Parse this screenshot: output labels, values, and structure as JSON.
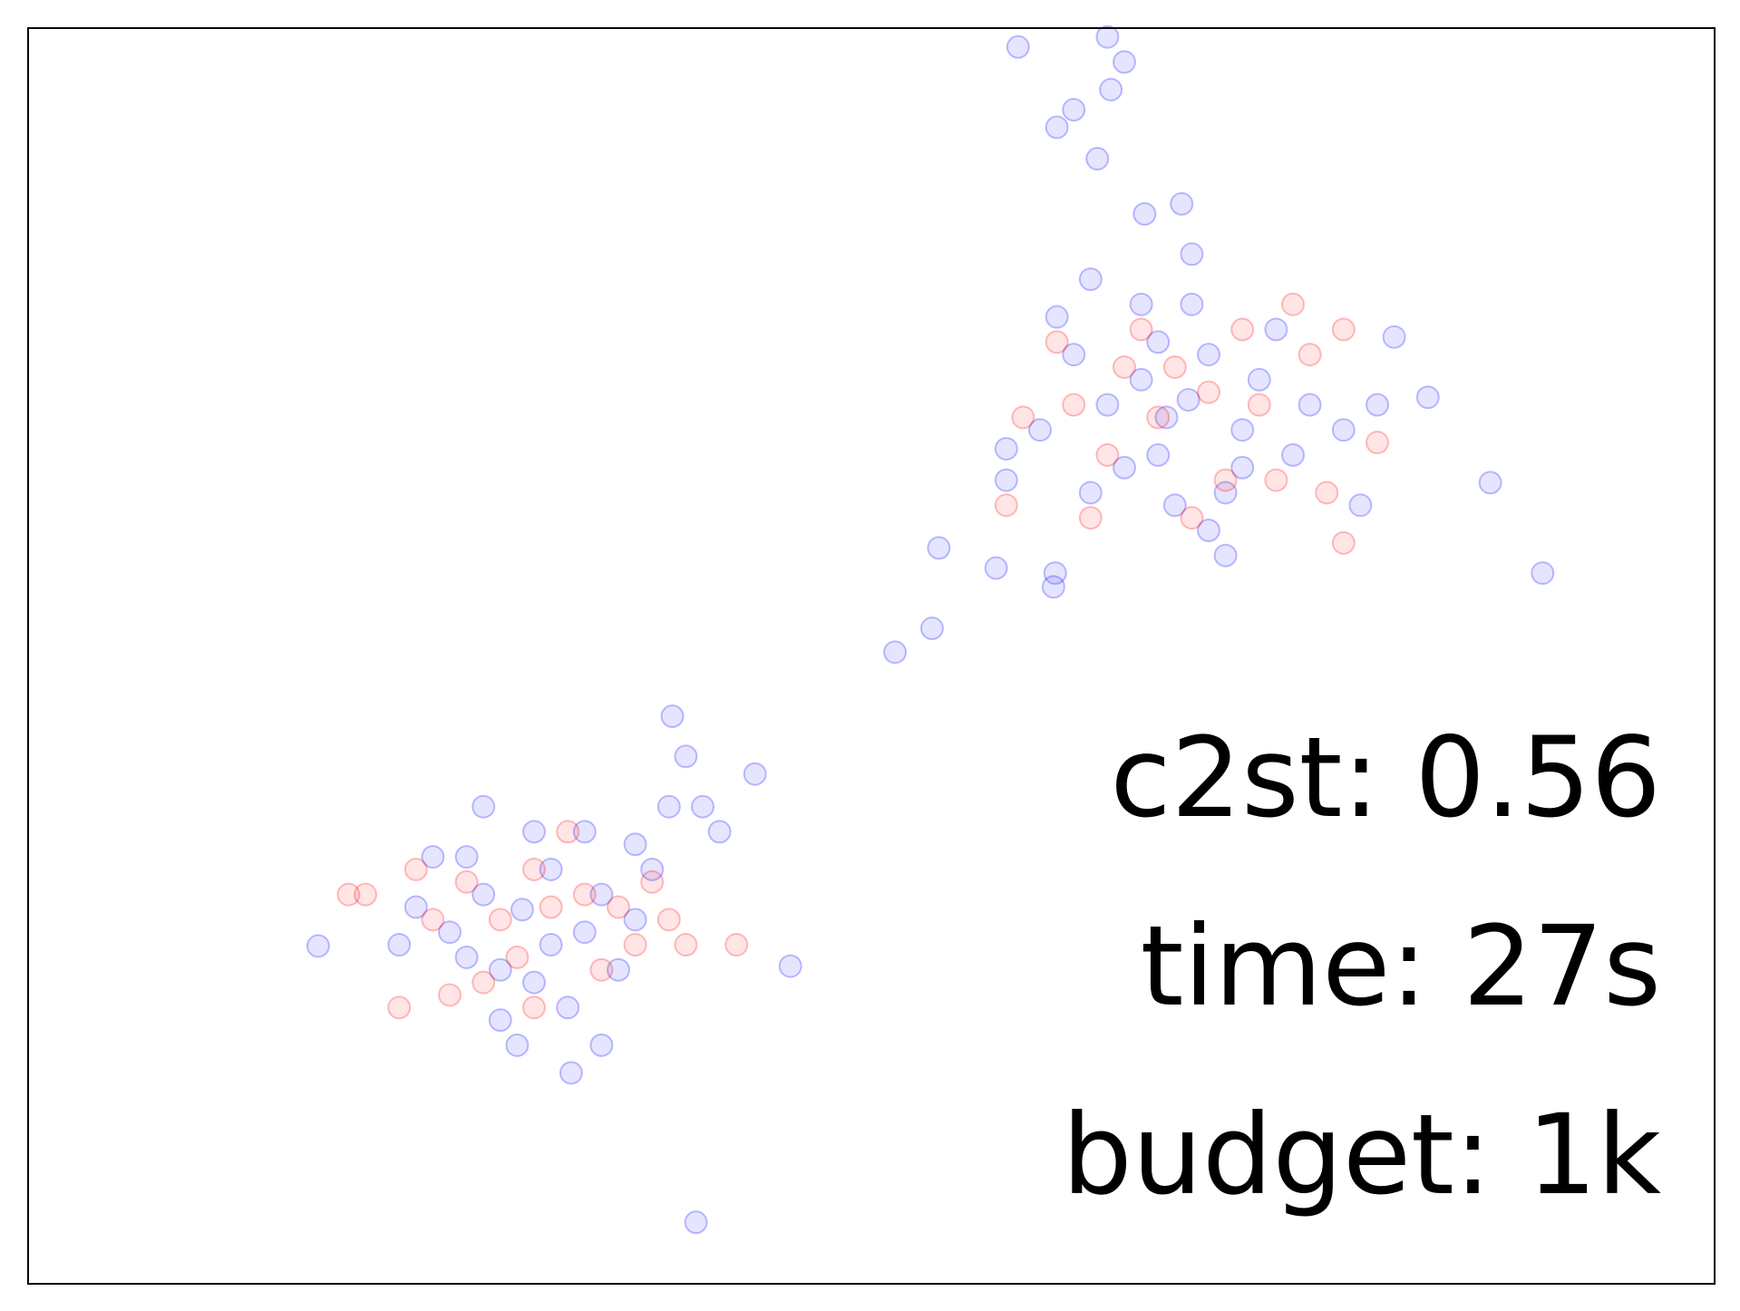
{
  "chart_data": {
    "type": "scatter",
    "xlim": [
      0,
      100
    ],
    "ylim": [
      0,
      100
    ],
    "annotations": [
      "c2st: 0.56",
      "time: 27s",
      "budget: 1k"
    ],
    "series": [
      {
        "color": "#0000ff",
        "x": [
          58.7,
          64.0,
          65.0,
          64.2,
          62.0,
          61.0,
          63.4,
          66.2,
          68.4,
          58.0,
          54.0,
          57.4,
          60.9,
          60.8,
          53.6,
          51.4,
          86.7,
          89.8,
          83.0,
          81.0,
          45.2,
          39.6,
          17.2,
          38.2,
          43.1,
          32.2,
          68.8,
          66,
          70,
          72,
          64,
          67,
          71,
          73,
          62,
          69,
          66,
          74,
          76,
          60,
          63,
          70,
          68,
          75,
          78,
          61,
          65,
          72,
          67,
          63,
          69,
          80,
          79,
          58,
          71,
          67.5,
          29.3,
          27,
          31,
          33,
          25,
          28,
          30,
          34,
          26,
          30,
          36,
          38,
          37,
          23,
          24,
          28,
          32,
          35,
          22,
          40,
          39,
          27,
          33,
          31,
          36,
          29,
          34,
          41,
          26
        ],
        "values": [
          98.5,
          99.3,
          97.3,
          95.1,
          93.5,
          92.1,
          89.6,
          85.2,
          86.0,
          66.5,
          58.6,
          57.0,
          56.6,
          55.5,
          52.2,
          50.3,
          63.8,
          56.6,
          70.6,
          75.4,
          25.3,
          4.9,
          26.9,
          45.2,
          40.6,
          16.8,
          70.4,
          72,
          74,
          68,
          70,
          66,
          63,
          72,
          74,
          78,
          78,
          76,
          70,
          68,
          63,
          60,
          62,
          66,
          68,
          77,
          65,
          65,
          75,
          80,
          82,
          70,
          62,
          64,
          58,
          69,
          29.8,
          31,
          33,
          28,
          28,
          25,
          24,
          31,
          34,
          36,
          35,
          38,
          33,
          30,
          34,
          21,
          22,
          25,
          27,
          38,
          42,
          38,
          36,
          27,
          29,
          19,
          19,
          36,
          26
        ]
      },
      {
        "color": "#ff0000",
        "x": [
          67,
          70,
          65,
          73,
          76,
          78,
          62,
          59,
          64,
          71,
          74,
          69,
          77,
          61,
          66,
          72,
          75,
          80,
          58,
          78,
          63,
          68,
          28,
          31,
          30,
          26,
          24,
          33,
          35,
          23,
          20,
          19,
          32,
          29,
          36,
          39,
          42,
          34,
          25,
          38,
          30,
          22,
          27,
          37
        ],
        "values": [
          69,
          71,
          73,
          70,
          74,
          76,
          70,
          69,
          66,
          64,
          64,
          61,
          63,
          75,
          76,
          76,
          78,
          67,
          62,
          59,
          61,
          73,
          29,
          30,
          33,
          32,
          29,
          31,
          30,
          33,
          31,
          31,
          36,
          26,
          27,
          27,
          27,
          25,
          23,
          29,
          22,
          22,
          24,
          32
        ]
      }
    ]
  }
}
